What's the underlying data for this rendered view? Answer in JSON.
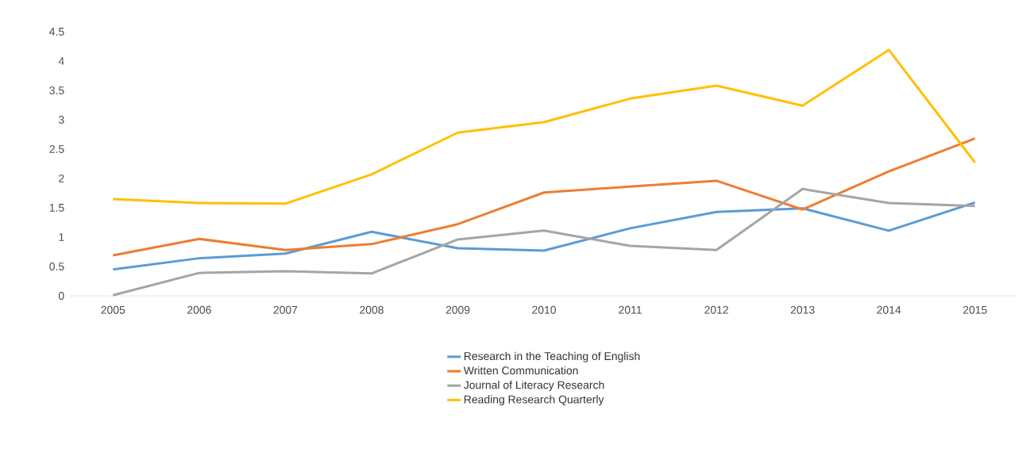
{
  "chart_data": {
    "type": "line",
    "categories": [
      "2005",
      "2006",
      "2007",
      "2008",
      "2009",
      "2010",
      "2011",
      "2012",
      "2013",
      "2014",
      "2015"
    ],
    "series": [
      {
        "name": "Research in the Teaching of English",
        "color": "#5b9bd5",
        "values": [
          0.45,
          0.64,
          0.72,
          1.09,
          0.81,
          0.77,
          1.15,
          1.43,
          1.49,
          1.11,
          1.59
        ]
      },
      {
        "name": "Written Communication",
        "color": "#ed7d31",
        "values": [
          0.69,
          0.97,
          0.78,
          0.88,
          1.22,
          1.76,
          1.86,
          1.96,
          1.47,
          2.12,
          2.68
        ]
      },
      {
        "name": "Journal of Literacy Research",
        "color": "#a5a5a5",
        "values": [
          0.01,
          0.39,
          0.42,
          0.38,
          0.96,
          1.11,
          0.85,
          0.78,
          1.82,
          1.58,
          1.53
        ]
      },
      {
        "name": "Reading Research Quarterly",
        "color": "#ffc000",
        "values": [
          1.65,
          1.58,
          1.57,
          2.07,
          2.78,
          2.96,
          3.36,
          3.58,
          3.24,
          4.19,
          2.27
        ]
      }
    ],
    "ylim": [
      0,
      4.5
    ],
    "yticks": [
      0,
      0.5,
      1,
      1.5,
      2,
      2.5,
      3,
      3.5,
      4,
      4.5
    ],
    "grid": false,
    "legend": "bottom",
    "marker": "none",
    "line_style": "solid"
  }
}
